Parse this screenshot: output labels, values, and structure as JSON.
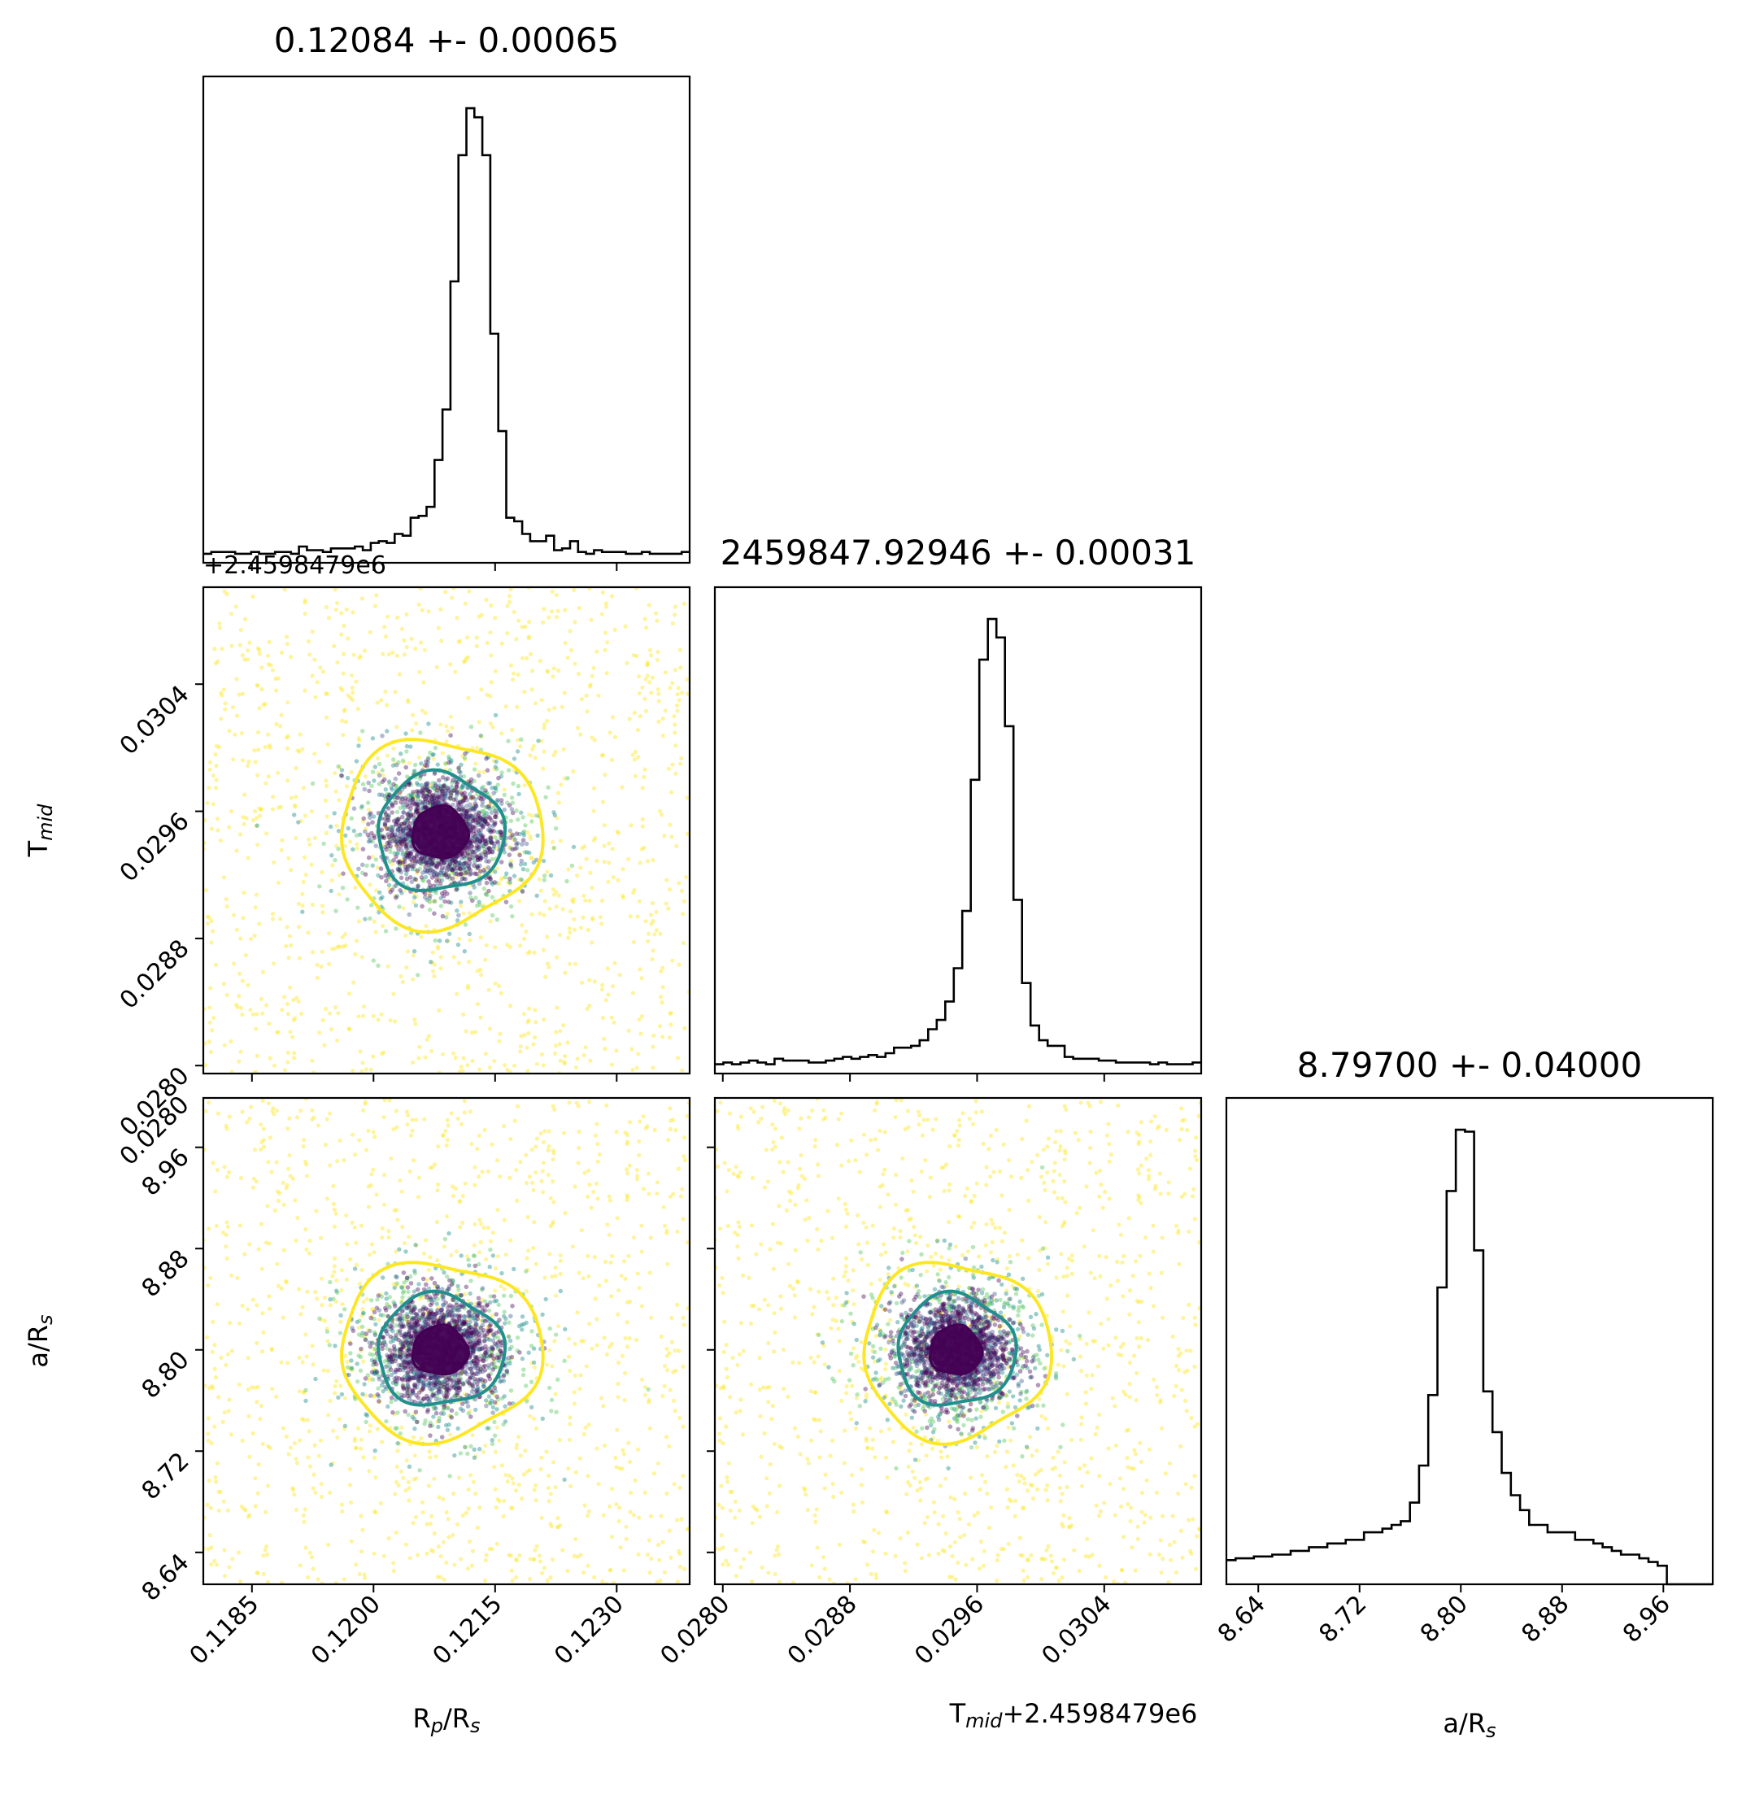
{
  "chart_data": {
    "type": "scatter",
    "figure": "corner plot",
    "parameters": [
      {
        "key": "rp",
        "axis_label": "R$_p$/R$_s$",
        "range": [
          0.1179,
          0.1239
        ],
        "ticks": [
          0.1185,
          0.12,
          0.1215,
          0.123
        ],
        "tick_labels": [
          "0.1185",
          "0.1200",
          "0.1215",
          "0.1230"
        ]
      },
      {
        "key": "tmid",
        "axis_label": "T$_{mid}$",
        "offset_label": "+2.4598479e6",
        "range": [
          0.02795,
          0.03101
        ],
        "ticks": [
          0.028,
          0.0288,
          0.0296,
          0.0304
        ],
        "tick_labels": [
          "0.0280",
          "0.0288",
          "0.0296",
          "0.0304"
        ]
      },
      {
        "key": "ars",
        "axis_label": "a/R$_s$",
        "range": [
          8.6148,
          8.999
        ],
        "ticks": [
          8.64,
          8.72,
          8.8,
          8.88,
          8.96
        ],
        "tick_labels": [
          "8.64",
          "8.72",
          "8.80",
          "8.88",
          "8.96"
        ]
      }
    ],
    "titles": [
      "0.12084 +- 0.00065",
      "2459847.92946 +- 0.00031",
      "8.79700 +- 0.04000"
    ],
    "axis_texts": {
      "rp_x": "R$_p$/R$_s$",
      "tmid_x": "T$_{mid}$+2.4598479e6",
      "ars_x": "a/R$_s$",
      "tmid_y": "T$_{mid}$",
      "ars_y": "a/R$_s$",
      "offset_top": "+2.4598479e6"
    },
    "histograms": {
      "rp": [
        5,
        6,
        6,
        6,
        5,
        5,
        6,
        5,
        5,
        6,
        6,
        5,
        9,
        7,
        7,
        6,
        8,
        8,
        8,
        9,
        7,
        11,
        12,
        11,
        16,
        15,
        25,
        26,
        31,
        57,
        85,
        156,
        226,
        252,
        247,
        226,
        127,
        73,
        25,
        23,
        16,
        12,
        12,
        15,
        7,
        8,
        12,
        6,
        5,
        7,
        6,
        6,
        6,
        5,
        5,
        6,
        5,
        5,
        5,
        5,
        6
      ],
      "tmid": [
        5,
        6,
        5,
        6,
        7,
        6,
        5,
        8,
        7,
        7,
        7,
        6,
        6,
        7,
        8,
        9,
        8,
        9,
        10,
        9,
        11,
        14,
        14,
        15,
        18,
        24,
        29,
        39,
        57,
        88,
        159,
        224,
        246,
        236,
        188,
        94,
        49,
        26,
        18,
        15,
        15,
        9,
        8,
        8,
        8,
        7,
        7,
        6,
        6,
        6,
        6,
        5,
        6,
        5,
        5,
        5,
        6
      ],
      "ars": [
        13,
        14,
        14,
        15,
        15,
        16,
        16,
        18,
        18,
        20,
        20,
        22,
        22,
        24,
        24,
        28,
        28,
        30,
        32,
        34,
        44,
        64,
        102,
        160,
        212,
        245,
        244,
        180,
        104,
        82,
        60,
        48,
        40,
        32,
        32,
        28,
        28,
        28,
        24,
        24,
        22,
        20,
        18,
        16,
        16,
        14,
        12,
        10,
        0,
        0,
        0,
        0,
        0
      ]
    },
    "contours": {
      "rp_tmid": {
        "center": [
          0.12082,
          0.029465
        ],
        "sigma": [
          0.0004,
          0.00019
        ]
      },
      "rp_ars": {
        "center": [
          0.12082,
          8.7995
        ],
        "sigma": [
          0.0004,
          0.0225
        ]
      },
      "tmid_ars": {
        "center": [
          0.029465,
          8.7995
        ],
        "sigma": [
          0.00019,
          0.0225
        ]
      }
    },
    "contour_levels": [
      "inner",
      "middle",
      "outer"
    ],
    "colormap": {
      "inner": "#440154",
      "middle": "#21908d",
      "outer": "#fde725",
      "scatter_mid": "#5ec962",
      "scatter_blue": "#3b528b"
    },
    "grid": false,
    "legend": "none"
  }
}
